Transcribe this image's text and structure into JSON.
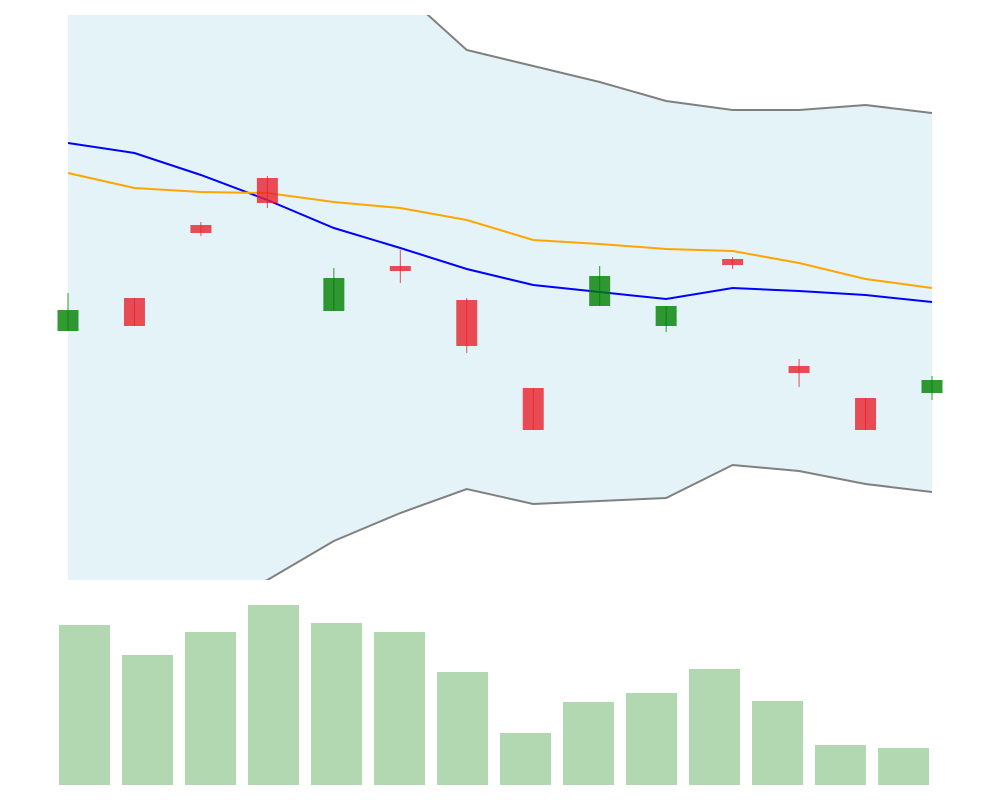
{
  "chart_data": [
    {
      "type": "candlestick",
      "ylim": [
        0,
        565
      ],
      "up_color": "#008000",
      "down_color": "#e8202a",
      "open": [
        249,
        282,
        355,
        402,
        269,
        314,
        280,
        192,
        274,
        254,
        321,
        214,
        182,
        187
      ],
      "high": [
        287,
        282,
        358,
        404,
        312,
        330,
        282,
        192,
        314,
        274,
        323,
        221,
        182,
        204
      ],
      "low": [
        249,
        254,
        344,
        372,
        269,
        297,
        227,
        150,
        274,
        248,
        311,
        193,
        150,
        180
      ],
      "close": [
        270,
        254,
        347,
        377,
        302,
        309,
        234,
        150,
        304,
        274,
        315,
        207,
        150,
        200
      ],
      "band": {
        "fill": "#e4f3f7",
        "color": "#808080",
        "upper": [
          700,
          690,
          660,
          640,
          620,
          590,
          530,
          514,
          498,
          479,
          470,
          470,
          475,
          467
        ],
        "lower": [
          -50,
          -40,
          -25,
          0,
          39,
          67,
          91,
          76,
          79,
          82,
          115,
          109,
          96,
          88
        ]
      },
      "series": [
        {
          "color": "#0000ff",
          "values": [
            437,
            427,
            405,
            380,
            352,
            332,
            311,
            295,
            288,
            281,
            292,
            289,
            285,
            278
          ]
        },
        {
          "color": "#ffa500",
          "values": [
            407,
            392,
            388,
            387,
            378,
            372,
            360,
            340,
            336,
            331,
            329,
            317,
            301,
            292
          ]
        }
      ]
    },
    {
      "type": "bar",
      "ylim": [
        0,
        180
      ],
      "color": "#b2d8b2",
      "values": [
        160,
        130,
        153,
        180,
        162,
        153,
        113,
        52,
        83,
        92,
        116,
        84,
        40,
        37
      ]
    }
  ]
}
